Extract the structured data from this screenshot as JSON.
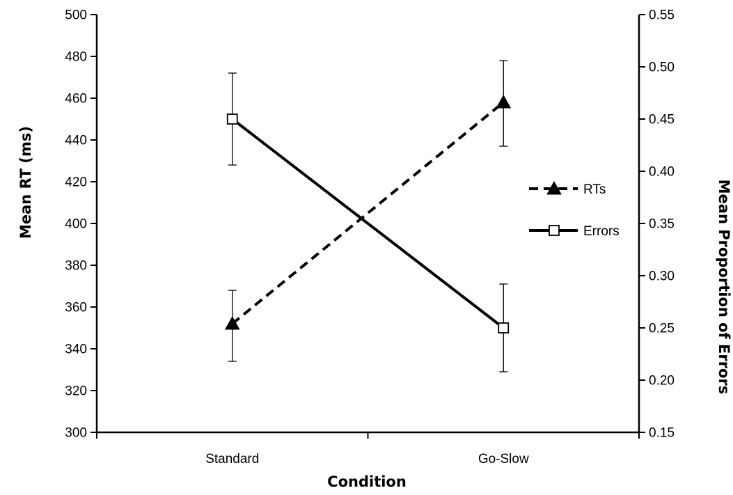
{
  "chart_data": {
    "type": "line",
    "categories": [
      "Standard",
      "Go-Slow"
    ],
    "xlabel": "Condition",
    "ylabel": "Mean RT (ms)",
    "y2label": "Mean Proportion of Errors",
    "ylim": [
      300,
      500
    ],
    "y2lim": [
      0.15,
      0.55
    ],
    "yticks": [
      "300",
      "320",
      "340",
      "360",
      "380",
      "400",
      "420",
      "440",
      "460",
      "480",
      "500"
    ],
    "y2ticks": [
      "0.15",
      "0.20",
      "0.25",
      "0.30",
      "0.35",
      "0.40",
      "0.45",
      "0.50",
      "0.55"
    ],
    "grid": false,
    "legend_position": "right",
    "series": [
      {
        "name": "RTs",
        "axis": "left",
        "values": [
          352,
          458
        ],
        "error_low": [
          334,
          437
        ],
        "error_high": [
          368,
          478
        ],
        "line_style": "dashed",
        "marker": "filled-triangle",
        "color": "#000000"
      },
      {
        "name": "Errors",
        "axis": "right",
        "values": [
          0.45,
          0.25
        ],
        "error_low": [
          0.406,
          0.208
        ],
        "error_high": [
          0.494,
          0.292
        ],
        "line_style": "solid",
        "marker": "open-square",
        "color": "#000000"
      }
    ]
  }
}
